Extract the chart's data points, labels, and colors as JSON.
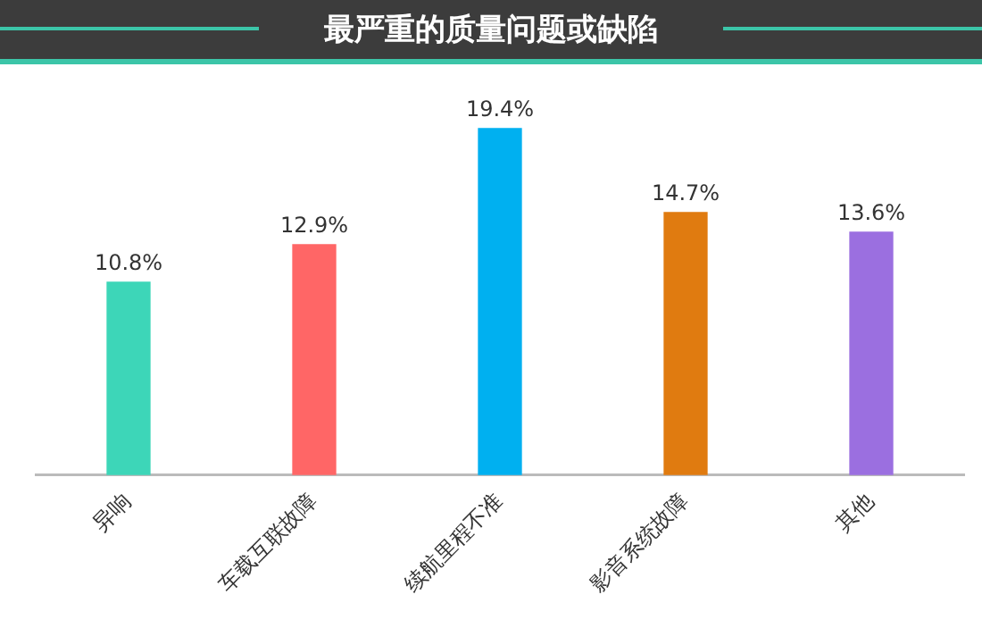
{
  "chart_data": {
    "type": "bar",
    "title": "最严重的质量问题或缺陷",
    "categories": [
      "异响",
      "车载互联故障",
      "续航里程不准",
      "影音系统故障",
      "其他"
    ],
    "values": [
      10.8,
      12.9,
      19.4,
      14.7,
      13.6
    ],
    "colors": [
      "#3dd6b8",
      "#ff6666",
      "#00b0f0",
      "#e07b10",
      "#9b6fe0"
    ],
    "value_labels": [
      "10.8%",
      "12.9%",
      "19.4%",
      "14.7%",
      "13.6%"
    ],
    "grid": false,
    "legend": false
  }
}
